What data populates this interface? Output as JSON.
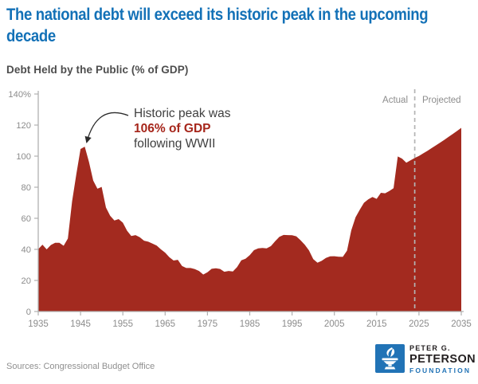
{
  "header": {
    "title": "The national debt will exceed its historic peak in the upcoming decade",
    "subtitle": "Debt Held by the Public (% of GDP)"
  },
  "annotation": {
    "line1": "Historic peak was",
    "line2": "106% of GDP",
    "line3": "following WWII",
    "target_year": 1946,
    "target_value": 106
  },
  "divider": {
    "label_left": "Actual",
    "label_right": "Projected",
    "year": 2024
  },
  "footer": {
    "source": "Sources: Congressional Budget Office"
  },
  "logo": {
    "line1": "PETER G.",
    "line2": "PETERSON",
    "line3": "FOUNDATION",
    "torch_icon": "torch-icon"
  },
  "colors": {
    "title-blue": "#1371b7",
    "area-red": "#a32a1f",
    "annotation-red": "#a6261b",
    "logo-blue": "#2173b6",
    "axis-gray": "#b0b0b0",
    "tick-text-gray": "#8c8c8c",
    "divider-gray": "#b4b4b4"
  },
  "chart_data": {
    "type": "area",
    "title": "Debt Held by the Public (% of GDP)",
    "xlabel": "",
    "ylabel": "% of GDP",
    "xlim": [
      1935,
      2035
    ],
    "ylim": [
      0,
      140
    ],
    "grid": false,
    "legend": "none",
    "xticks": [
      1935,
      1945,
      1955,
      1965,
      1975,
      1985,
      1995,
      2005,
      2015,
      2025,
      2035
    ],
    "yticks": [
      0,
      20,
      40,
      60,
      80,
      100,
      120,
      140
    ],
    "ytick_labels": [
      "0",
      "20",
      "40",
      "60",
      "80",
      "100",
      "120",
      "140%"
    ],
    "divider_year": 2024,
    "x": [
      1935,
      1936,
      1937,
      1938,
      1939,
      1940,
      1941,
      1942,
      1943,
      1944,
      1945,
      1946,
      1947,
      1948,
      1949,
      1950,
      1951,
      1952,
      1953,
      1954,
      1955,
      1956,
      1957,
      1958,
      1959,
      1960,
      1961,
      1962,
      1963,
      1964,
      1965,
      1966,
      1967,
      1968,
      1969,
      1970,
      1971,
      1972,
      1973,
      1974,
      1975,
      1976,
      1977,
      1978,
      1979,
      1980,
      1981,
      1982,
      1983,
      1984,
      1985,
      1986,
      1987,
      1988,
      1989,
      1990,
      1991,
      1992,
      1993,
      1994,
      1995,
      1996,
      1997,
      1998,
      1999,
      2000,
      2001,
      2002,
      2003,
      2004,
      2005,
      2006,
      2007,
      2008,
      2009,
      2010,
      2011,
      2012,
      2013,
      2014,
      2015,
      2016,
      2017,
      2018,
      2019,
      2020,
      2021,
      2022,
      2023,
      2024,
      2025,
      2026,
      2027,
      2028,
      2029,
      2030,
      2031,
      2032,
      2033,
      2034,
      2035
    ],
    "series": [
      {
        "name": "Debt held by the public (% of GDP)",
        "values": [
          40.1,
          43.0,
          40.0,
          42.8,
          44.2,
          44.2,
          42.3,
          47.0,
          70.9,
          88.3,
          104.6,
          106.1,
          96.2,
          84.3,
          79.0,
          80.2,
          66.9,
          61.6,
          58.6,
          59.5,
          57.2,
          52.0,
          48.6,
          49.2,
          47.8,
          45.6,
          44.9,
          43.7,
          42.4,
          40.0,
          37.9,
          34.9,
          32.8,
          33.3,
          29.3,
          28.0,
          28.0,
          27.3,
          26.1,
          23.8,
          25.3,
          27.5,
          27.8,
          27.4,
          25.6,
          26.1,
          25.8,
          28.6,
          33.0,
          34.0,
          36.3,
          39.5,
          40.6,
          40.9,
          40.6,
          42.1,
          45.3,
          48.1,
          49.3,
          49.2,
          49.1,
          48.4,
          45.9,
          43.0,
          39.4,
          33.7,
          31.4,
          32.6,
          34.5,
          35.5,
          35.6,
          35.3,
          35.2,
          39.2,
          52.2,
          60.6,
          65.5,
          70.0,
          72.2,
          73.7,
          72.5,
          76.4,
          76.1,
          77.6,
          79.4,
          99.8,
          98.4,
          95.8,
          97.3,
          98.8,
          100.1,
          101.8,
          103.4,
          105.2,
          106.9,
          108.7,
          110.5,
          112.4,
          114.3,
          116.2,
          118.2
        ]
      }
    ]
  }
}
